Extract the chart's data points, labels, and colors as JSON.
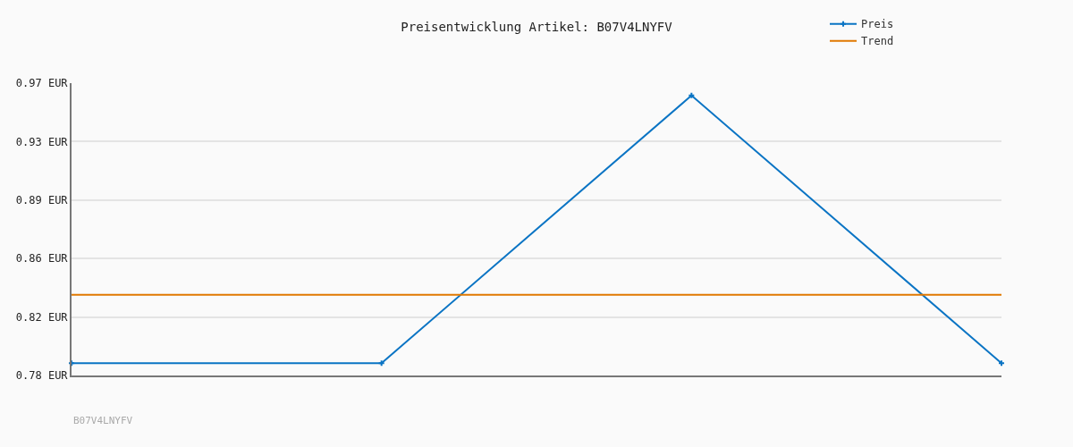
{
  "chart_data": {
    "type": "line",
    "title": "Preisentwicklung Artikel: B07V4LNYFV",
    "categories": [
      null,
      null,
      null,
      null
    ],
    "series": [
      {
        "name": "Preis",
        "color": "#0a74c4",
        "values": [
          0.788,
          0.788,
          0.962,
          0.788
        ],
        "marker": "cross"
      },
      {
        "name": "Trend",
        "color": "#e07800",
        "values": [
          0.8325,
          0.8325,
          0.8325,
          0.8325
        ]
      }
    ],
    "ylim": [
      0.78,
      0.97
    ],
    "yticks": [
      {
        "value": 0.78,
        "label": "0.78 EUR"
      },
      {
        "value": 0.818,
        "label": "0.82 EUR"
      },
      {
        "value": 0.856,
        "label": "0.86 EUR"
      },
      {
        "value": 0.894,
        "label": "0.89 EUR"
      },
      {
        "value": 0.932,
        "label": "0.93 EUR"
      },
      {
        "value": 0.97,
        "label": "0.97 EUR"
      }
    ],
    "grid": "y",
    "legend": "top right",
    "line_style": "solid",
    "annotations": [
      "B07V4LNYFV"
    ]
  }
}
